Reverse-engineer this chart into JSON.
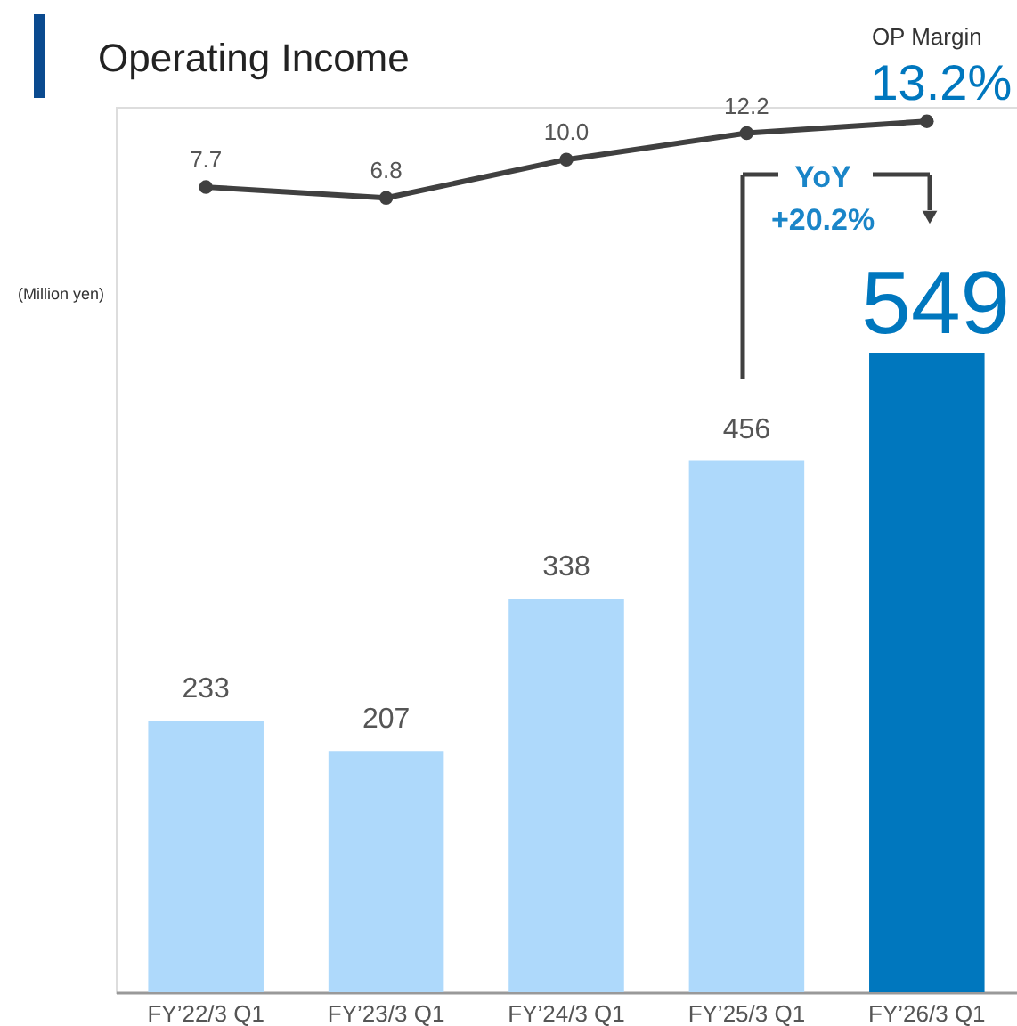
{
  "chart_data": {
    "type": "bar",
    "title": "Operating Income",
    "ylabel": "(Million yen)",
    "categories": [
      "FY’22/3 Q1",
      "FY’23/3 Q1",
      "FY’24/3 Q1",
      "FY’25/3 Q1",
      "FY’26/3 Q1"
    ],
    "series": [
      {
        "values": [
          233,
          207,
          338,
          456,
          549
        ],
        "colors": [
          "#aed9fb",
          "#aed9fb",
          "#aed9fb",
          "#aed9fb",
          "#0077be"
        ],
        "value_labels": [
          "233",
          "207",
          "338",
          "456",
          "549"
        ]
      },
      {
        "name": "OP Margin",
        "type": "line",
        "axis": "y2",
        "color": "#404040",
        "values": [
          7.7,
          6.8,
          10.0,
          12.2,
          13.2
        ],
        "value_labels": [
          "7.7",
          "6.8",
          "10.0",
          "12.2",
          "13.2%"
        ]
      }
    ],
    "ylim": [
      0,
      760
    ],
    "y2lim": [
      -59.5,
      14.4
    ],
    "tick_labels": "x",
    "marker": "circle",
    "grid": false,
    "annotations": [
      "YoY +20.2%"
    ]
  }
}
